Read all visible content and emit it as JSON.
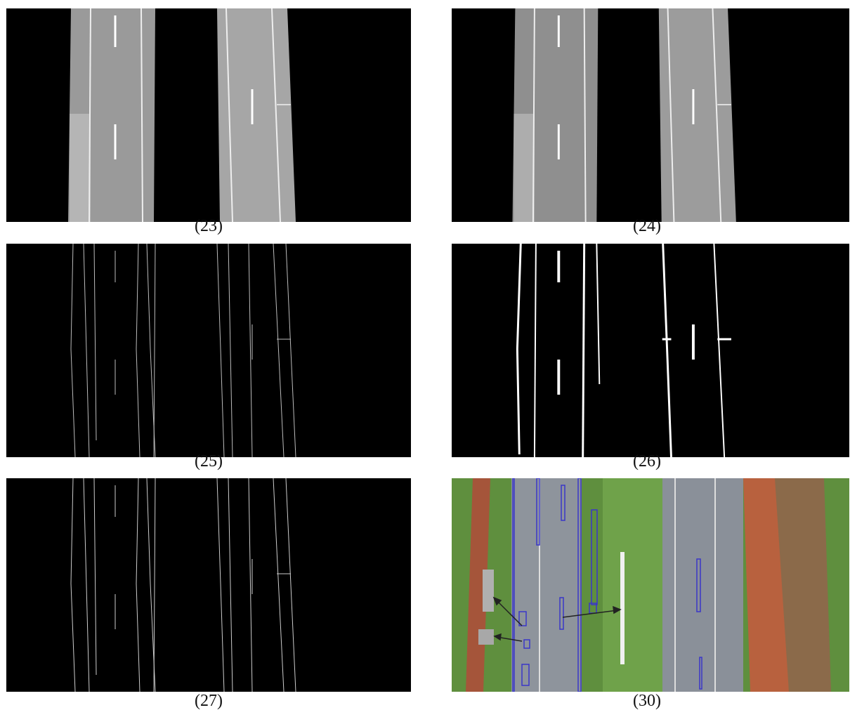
{
  "panels": [
    {
      "caption": "(23)"
    },
    {
      "caption": "(24)"
    },
    {
      "caption": "(25)"
    },
    {
      "caption": "(26)"
    },
    {
      "caption": "(27)"
    },
    {
      "caption": "(30)"
    }
  ]
}
